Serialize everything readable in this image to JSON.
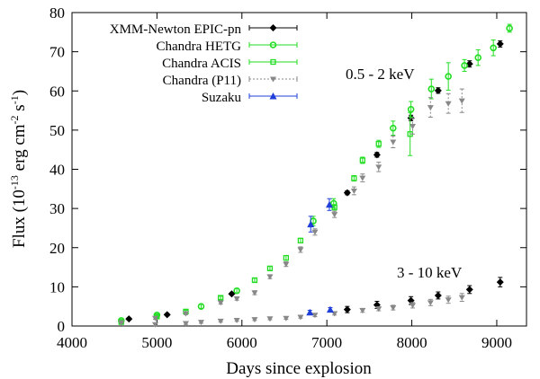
{
  "chart_data": {
    "type": "scatter",
    "xlabel": "Days since explosion",
    "ylabel": "Flux (10",
    "ylabel_exp1": "-13",
    "ylabel_mid": " erg cm",
    "ylabel_exp2": "-2",
    "ylabel_s": " s",
    "ylabel_exp3": "-1",
    "ylabel_close": ")",
    "xlim": [
      4000,
      9350
    ],
    "ylim": [
      0,
      80
    ],
    "xticks": [
      4000,
      5000,
      6000,
      7000,
      8000,
      9000
    ],
    "yticks": [
      0,
      10,
      20,
      30,
      40,
      50,
      60,
      70,
      80
    ],
    "legend_position": "top-left",
    "annotations": [
      {
        "text": "0.5 - 2 keV",
        "x": 8400,
        "y": 65
      },
      {
        "text": "3 - 10 keV",
        "x": 8400,
        "y": 12.8
      }
    ],
    "series": [
      {
        "name": "XMM-Newton EPIC-pn",
        "color": "#000000",
        "marker": "diamond",
        "points": [
          {
            "x": 4670,
            "y": 1.8,
            "err": 0.3
          },
          {
            "x": 5120,
            "y": 2.9,
            "err": 0.3
          },
          {
            "x": 5880,
            "y": 8.2,
            "err": 0.3
          },
          {
            "x": 7240,
            "y": 34.0,
            "err": 0.5
          },
          {
            "x": 7590,
            "y": 43.7,
            "err": 0.6
          },
          {
            "x": 7990,
            "y": 53.1,
            "err": 0.7
          },
          {
            "x": 8310,
            "y": 60.1,
            "err": 0.7
          },
          {
            "x": 8680,
            "y": 66.9,
            "err": 0.8
          },
          {
            "x": 9040,
            "y": 72.0,
            "err": 0.8
          },
          {
            "x": 7240,
            "y": 4.2,
            "err": 0.8
          },
          {
            "x": 7590,
            "y": 5.4,
            "err": 0.9
          },
          {
            "x": 7990,
            "y": 6.5,
            "err": 1.0
          },
          {
            "x": 8310,
            "y": 7.8,
            "err": 0.9
          },
          {
            "x": 8680,
            "y": 9.3,
            "err": 1.0
          },
          {
            "x": 9040,
            "y": 11.2,
            "err": 1.2
          }
        ]
      },
      {
        "name": "Chandra HETG",
        "color": "#22dd22",
        "marker": "circle",
        "points": [
          {
            "x": 4580,
            "y": 1.4,
            "err": 0.3
          },
          {
            "x": 5000,
            "y": 2.8,
            "err": 0.3
          },
          {
            "x": 5520,
            "y": 5.0,
            "err": 0.5
          },
          {
            "x": 5940,
            "y": 9.0,
            "err": 0.6
          },
          {
            "x": 6840,
            "y": 26.8,
            "err": 1.2
          },
          {
            "x": 7080,
            "y": 31.3,
            "err": 1.2
          },
          {
            "x": 7780,
            "y": 50.5,
            "err": 1.8
          },
          {
            "x": 7990,
            "y": 55.3,
            "err": 2.0
          },
          {
            "x": 8230,
            "y": 60.5,
            "err": 2.5
          },
          {
            "x": 8430,
            "y": 63.7,
            "err": 3.5
          },
          {
            "x": 8620,
            "y": 66.5,
            "err": 1.5
          },
          {
            "x": 8780,
            "y": 68.5,
            "err": 2.0
          },
          {
            "x": 8960,
            "y": 71.0,
            "err": 2.0
          },
          {
            "x": 9150,
            "y": 76.0,
            "err": 1.0
          }
        ]
      },
      {
        "name": "Chandra ACIS",
        "color": "#22dd22",
        "marker": "square-open",
        "points": [
          {
            "x": 4580,
            "y": 1.0,
            "err": 0.2
          },
          {
            "x": 5000,
            "y": 2.4,
            "err": 0.3
          },
          {
            "x": 5340,
            "y": 3.7,
            "err": 0.3
          },
          {
            "x": 5750,
            "y": 7.2,
            "err": 0.4
          },
          {
            "x": 6150,
            "y": 11.7,
            "err": 0.5
          },
          {
            "x": 6330,
            "y": 14.7,
            "err": 0.5
          },
          {
            "x": 6520,
            "y": 17.4,
            "err": 0.6
          },
          {
            "x": 6690,
            "y": 21.8,
            "err": 0.6
          },
          {
            "x": 7090,
            "y": 30.3,
            "err": 0.7
          },
          {
            "x": 7320,
            "y": 37.7,
            "err": 0.7
          },
          {
            "x": 7420,
            "y": 42.3,
            "err": 0.8
          },
          {
            "x": 7610,
            "y": 46.5,
            "err": 0.9
          },
          {
            "x": 7980,
            "y": 49.0,
            "err": 5.5
          }
        ]
      },
      {
        "name": "Chandra (P11)",
        "color": "#888888",
        "marker": "triangle-down",
        "points": [
          {
            "x": 4580,
            "y": 0.9,
            "err": 0.2
          },
          {
            "x": 4980,
            "y": 2.0,
            "err": 0.3
          },
          {
            "x": 5340,
            "y": 3.2,
            "err": 0.3
          },
          {
            "x": 5750,
            "y": 6.0,
            "err": 0.4
          },
          {
            "x": 5940,
            "y": 7.0,
            "err": 0.4
          },
          {
            "x": 6150,
            "y": 8.5,
            "err": 0.5
          },
          {
            "x": 6330,
            "y": 12.6,
            "err": 0.5
          },
          {
            "x": 6520,
            "y": 15.8,
            "err": 0.6
          },
          {
            "x": 6690,
            "y": 19.5,
            "err": 0.7
          },
          {
            "x": 6860,
            "y": 24.0,
            "err": 0.8
          },
          {
            "x": 7090,
            "y": 28.5,
            "err": 0.8
          },
          {
            "x": 7320,
            "y": 34.5,
            "err": 1.0
          },
          {
            "x": 7420,
            "y": 37.8,
            "err": 1.0
          },
          {
            "x": 7610,
            "y": 40.6,
            "err": 1.2
          },
          {
            "x": 7780,
            "y": 47.0,
            "err": 1.5
          },
          {
            "x": 8010,
            "y": 51.0,
            "err": 2.0
          },
          {
            "x": 8220,
            "y": 55.8,
            "err": 2.5
          },
          {
            "x": 8430,
            "y": 56.8,
            "err": 2.5
          },
          {
            "x": 8590,
            "y": 57.5,
            "err": 3.0
          },
          {
            "x": 4980,
            "y": 0.4,
            "err": 0.3
          },
          {
            "x": 5340,
            "y": 0.7,
            "err": 0.3
          },
          {
            "x": 5520,
            "y": 1.0,
            "err": 0.3
          },
          {
            "x": 5750,
            "y": 1.3,
            "err": 0.3
          },
          {
            "x": 5940,
            "y": 1.5,
            "err": 0.3
          },
          {
            "x": 6150,
            "y": 1.7,
            "err": 0.3
          },
          {
            "x": 6330,
            "y": 1.9,
            "err": 0.3
          },
          {
            "x": 6520,
            "y": 2.0,
            "err": 0.3
          },
          {
            "x": 6690,
            "y": 2.3,
            "err": 0.3
          },
          {
            "x": 6860,
            "y": 2.8,
            "err": 0.4
          },
          {
            "x": 7090,
            "y": 3.2,
            "err": 0.4
          },
          {
            "x": 7420,
            "y": 4.0,
            "err": 0.5
          },
          {
            "x": 7610,
            "y": 4.4,
            "err": 0.5
          },
          {
            "x": 7780,
            "y": 4.7,
            "err": 0.6
          },
          {
            "x": 8010,
            "y": 5.3,
            "err": 0.7
          },
          {
            "x": 8220,
            "y": 6.0,
            "err": 0.8
          },
          {
            "x": 8430,
            "y": 6.7,
            "err": 0.9
          },
          {
            "x": 8590,
            "y": 7.3,
            "err": 1.0
          }
        ]
      },
      {
        "name": "Suzaku",
        "color": "#1f3fd8",
        "marker": "triangle-up",
        "points": [
          {
            "x": 6810,
            "y": 26.0,
            "err": 2.0
          },
          {
            "x": 7030,
            "y": 31.0,
            "err": 1.5
          },
          {
            "x": 6800,
            "y": 3.5,
            "err": 0.5
          },
          {
            "x": 7040,
            "y": 4.2,
            "err": 0.5
          }
        ]
      }
    ]
  }
}
